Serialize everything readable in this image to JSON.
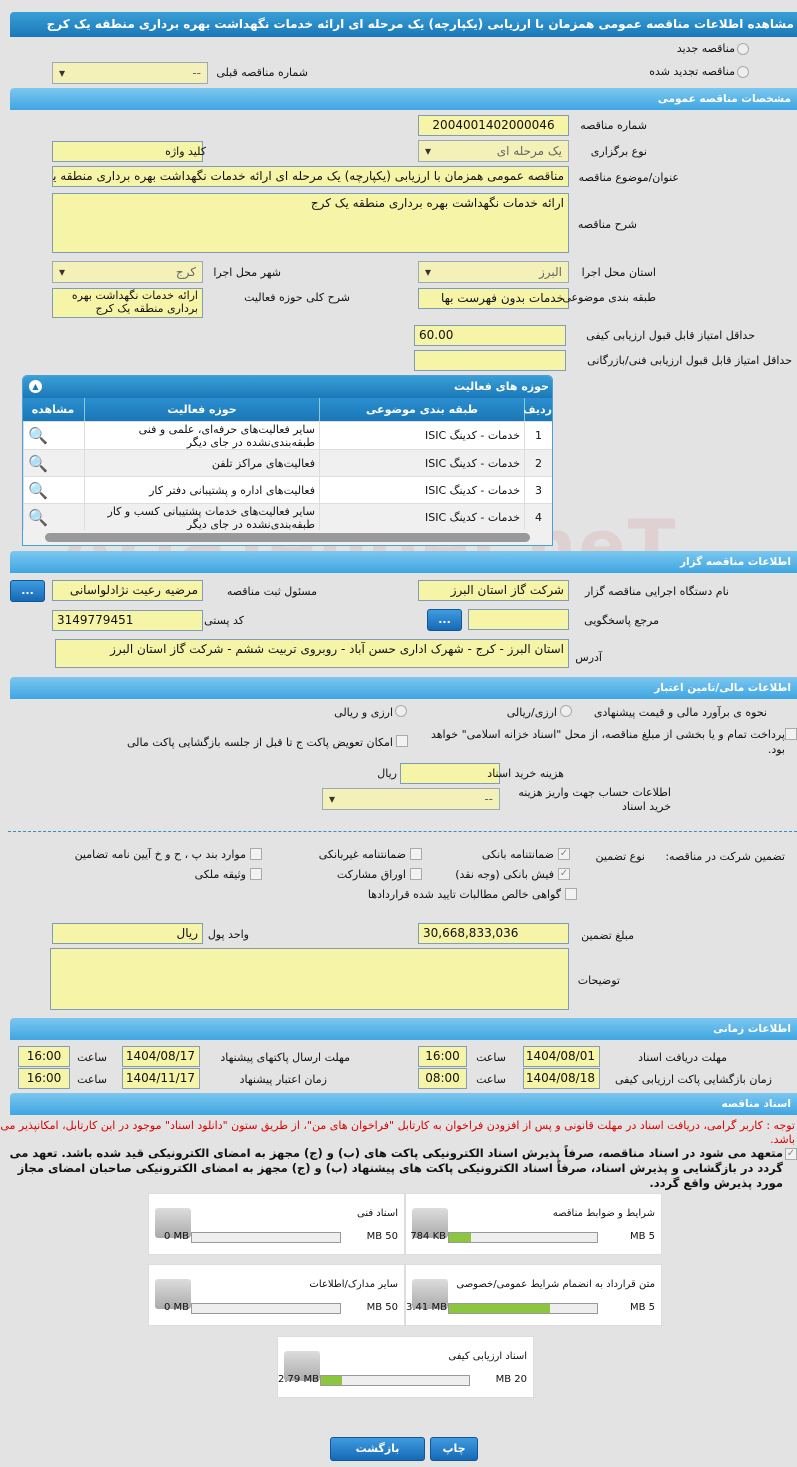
{
  "title": "مشاهده اطلاعات مناقصه عمومی همزمان با ارزیابی (یکپارچه) یک مرحله ای ارائه خدمات نگهداشت بهره برداری منطقه یک کرج",
  "watermark": "AriaTender.neT",
  "top": {
    "new_label": "مناقصه جدید",
    "renewed_label": "مناقصه تجدید شده",
    "prev_label": "شماره مناقصه قبلی",
    "prev_value": "--"
  },
  "general": {
    "header": "مشخصات مناقصه عمومی",
    "number_label": "شماره مناقصه",
    "number": "2004001402000046",
    "type_label": "نوع برگزاری",
    "type": "یک مرحله ای",
    "keyword_label": "کلید واژه",
    "keyword": "",
    "subject_label": "عنوان/موضوع مناقصه",
    "subject": "مناقصه عمومی همزمان با ارزیابی (یکپارچه) یک مرحله ای ارائه خدمات نگهداشت بهره برداری منطقه یک کرج",
    "desc_label": "شرح مناقصه",
    "desc": "ارائه خدمات نگهداشت بهره برداری منطقه یک کرج",
    "province_label": "استان محل اجرا",
    "province": "البرز",
    "city_label": "شهر محل اجرا",
    "city": "کرج",
    "category_label": "طبقه بندی موضوعی",
    "category": "خدمات بدون فهرست بها",
    "scope_label": "شرح کلی حوزه فعالیت",
    "scope": "ارائه خدمات نگهداشت بهره برداری منطقه یک کرج",
    "min_quality_label": "حداقل امتیاز قابل قبول ارزیابی کیفی",
    "min_quality": "60.00",
    "min_tech_label": "حداقل امتیاز قابل قبول ارزیابی فنی/بازرگانی",
    "min_tech": ""
  },
  "activities": {
    "header": "حوزه های فعالیت",
    "columns": [
      "ردیف",
      "طبقه بندی موضوعی",
      "حوزه فعالیت",
      "مشاهده"
    ],
    "rows": [
      {
        "n": "1",
        "cat": "خدمات - کدینگ ISIC",
        "area": "سایر فعالیت‌های حرفه‌ای، علمی و فنی طبقه‌بندی‌نشده در جای دیگر"
      },
      {
        "n": "2",
        "cat": "خدمات - کدینگ ISIC",
        "area": "فعالیت‌های مراکز تلفن"
      },
      {
        "n": "3",
        "cat": "خدمات - کدینگ ISIC",
        "area": "فعالیت‌های  اداره و پشتیبانی دفتر کار"
      },
      {
        "n": "4",
        "cat": "خدمات - کدینگ ISIC",
        "area": "سایر فعالیت‌های خدمات پشتیبانی کسب و کار طبقه‌بندی‌نشده در جای دیگر"
      }
    ]
  },
  "org": {
    "header": "اطلاعات مناقصه گزار",
    "agency_label": "نام دستگاه اجرایی مناقصه گزار",
    "agency": "شرکت گاز استان البرز",
    "registrar_label": "مسئول ثبت مناقصه",
    "registrar": "مرضیه رعیت نژادلواسانی",
    "more": "...",
    "ref_label": "مرجع پاسخگویی",
    "ref": "",
    "postal_label": "کد پستی",
    "postal": "3149779451",
    "address_label": "آدرس",
    "address": "استان البرز - کرج - شهرک اداری حسن آباد - روبروی تربیت ششم - شرکت گاز استان البرز"
  },
  "finance": {
    "header": "اطلاعات مالی/تامین اعتبار",
    "estimate_label": "نحوه ی برآورد مالی و قیمت پیشنهادی",
    "opt1": "ارزی/ریالی",
    "opt2": "ارزی و ریالی",
    "treasury": "پرداخت تمام و یا بخشی از مبلغ مناقصه، از محل \"اسناد خزانه اسلامی\" خواهد بود.",
    "swap": "امکان تعویض پاکت ج تا قبل از جلسه بازگشایی پاکت مالی",
    "doc_fee_label": "هزینه خرید اسناد",
    "doc_fee": "",
    "rial": "ریال",
    "account_label": "اطلاعات حساب جهت واریز هزینه خرید اسناد",
    "account": "--",
    "guarantee_label": "تضمین شرکت در مناقصه:",
    "gtype_label": "نوع تضمین",
    "g": [
      {
        "t": "ضمانتنامه بانکی",
        "c": true
      },
      {
        "t": "ضمانتنامه غیربانکی",
        "c": false
      },
      {
        "t": "موارد بند پ ، ح و خ آیین نامه تضامین",
        "c": false
      },
      {
        "t": "فیش بانکی (وجه نقد)",
        "c": true
      },
      {
        "t": "اوراق مشارکت",
        "c": false
      },
      {
        "t": "وثیقه ملکی",
        "c": false
      },
      {
        "t": "گواهی خالص مطالبات تایید شده قراردادها",
        "c": false
      }
    ],
    "amount_label": "مبلغ تضمین",
    "amount": "30,668,833,036",
    "currency_label": "واحد پول",
    "currency": "ریال",
    "notes_label": "توضیحات",
    "notes": ""
  },
  "timing": {
    "header": "اطلاعات زمانی",
    "hour": "ساعت",
    "receive_label": "مهلت دریافت اسناد",
    "receive_date": "1404/08/01",
    "receive_time": "16:00",
    "submit_label": "مهلت ارسال پاکتهای پیشنهاد",
    "submit_date": "1404/08/17",
    "submit_time": "16:00",
    "open_label": "زمان بازگشایی پاکت ارزیابی کیفی",
    "open_date": "1404/08/18",
    "open_time": "08:00",
    "valid_label": "زمان اعتبار پیشنهاد",
    "valid_date": "1404/11/17",
    "valid_time": "16:00"
  },
  "docs": {
    "header": "اسناد مناقصه",
    "note": "توجه : کاربر گرامی، دریافت اسناد در مهلت قانونی و پس از افزودن فراخوان به کارتابل \"فراخوان های من\"، از طریق ستون \"دانلود اسناد\" موجود در این کارتابل، امکانپذیر می باشد.",
    "pledge": "متعهد می شود در اسناد مناقصه، صرفاً پذیرش اسناد الکترونیکی پاکت های (ب) و (ج) مجهز به امضای الکترونیکی قید شده باشد. تعهد می گردد در بازگشایی و پذیرش اسناد، صرفاً اسناد الکترونیکی پاکت های پیشنهاد (ب) و (ج) مجهز به امضای الکترونیکی صاحبان امضای مجاز مورد پذیرش واقع گردد.",
    "files": [
      {
        "name": "شرایط و ضوابط مناقصه",
        "size": "784 KB",
        "max": "5 MB",
        "fill": 0.15
      },
      {
        "name": "اسناد فنی",
        "size": "0 MB",
        "max": "50 MB",
        "fill": 0
      },
      {
        "name": "متن قرارداد به انضمام شرایط عمومی/خصوصی",
        "size": "3.41 MB",
        "max": "5 MB",
        "fill": 0.68
      },
      {
        "name": "سایر مدارک/اطلاعات",
        "size": "0 MB",
        "max": "50 MB",
        "fill": 0
      },
      {
        "name": "اسناد ارزیابی کیفی",
        "size": "2.79 MB",
        "max": "20 MB",
        "fill": 0.14
      }
    ]
  },
  "buttons": {
    "print": "چاپ",
    "back": "بازگشت"
  }
}
